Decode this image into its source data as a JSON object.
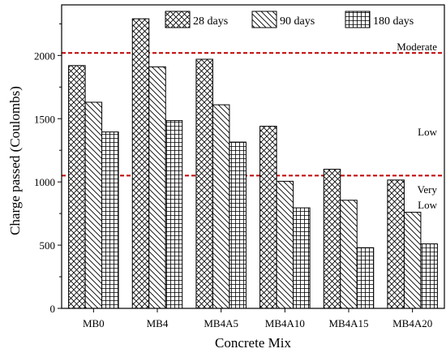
{
  "chart_data": {
    "type": "bar",
    "xlabel": "Concrete Mix",
    "ylabel": "Charge passed (Coulombs)",
    "categories": [
      "MB0",
      "MB4",
      "MB4A5",
      "MB4A10",
      "MB4A15",
      "MB4A20"
    ],
    "series": [
      {
        "name": "28 days",
        "pattern": "crosshatch",
        "values": [
          1920,
          2290,
          1970,
          1440,
          1100,
          1015
        ]
      },
      {
        "name": "90 days",
        "pattern": "diagonal",
        "values": [
          1630,
          1910,
          1610,
          1005,
          855,
          760
        ]
      },
      {
        "name": "180 days",
        "pattern": "grid",
        "values": [
          1395,
          1485,
          1315,
          795,
          480,
          510
        ]
      }
    ],
    "ylim": [
      0,
      2400
    ],
    "yticks": [
      0,
      500,
      1000,
      1500,
      2000
    ],
    "grid": false,
    "legend_position": "top-right",
    "reference_lines": [
      {
        "y": 2020,
        "color": "#c00000",
        "style": "dashed"
      },
      {
        "y": 1050,
        "color": "#c00000",
        "style": "dashed"
      }
    ],
    "annotations": {
      "moderate": "Moderate",
      "low": "Low",
      "very": "Very",
      "very_low": "Low"
    }
  }
}
